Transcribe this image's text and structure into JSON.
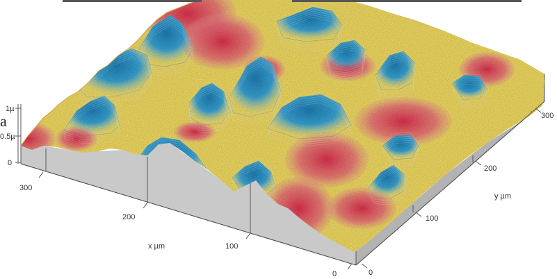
{
  "figure": {
    "stray_glyph": "a",
    "colors": {
      "peak": "#2a8fc4",
      "mid": "#f3dc63",
      "low": "#e2435f",
      "base_side": "#c9c9c9",
      "base_side_dark": "#b3b3b3",
      "edge": "#444444"
    },
    "z_axis": {
      "label_top": "1µ",
      "label_mid": "0.5µ",
      "label_zero": "0"
    },
    "x_axis": {
      "title": "x µm",
      "ticks": [
        "300",
        "200",
        "100",
        "0"
      ]
    },
    "y_axis": {
      "title": "y µm",
      "ticks": [
        "0",
        "100",
        "200",
        "300"
      ]
    }
  }
}
